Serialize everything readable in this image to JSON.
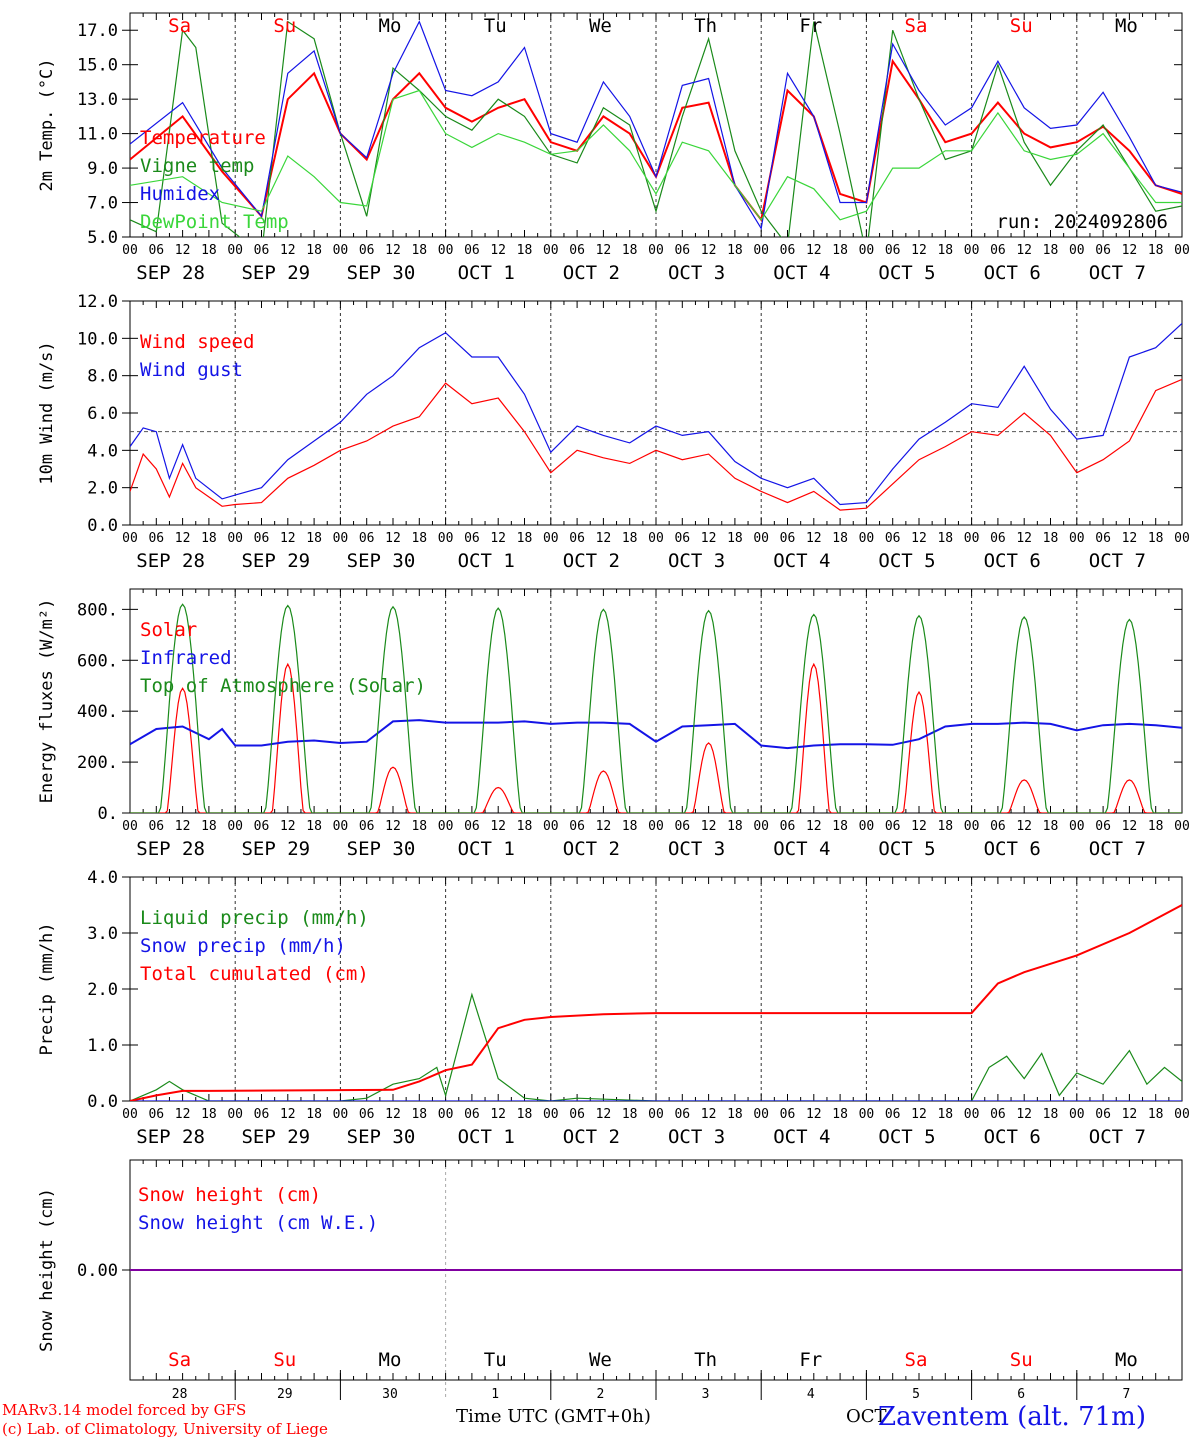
{
  "run_label": "run: 2024092806",
  "day_letters": [
    "Sa",
    "Su",
    "Mo",
    "Tu",
    "We",
    "Th",
    "Fr",
    "Sa",
    "Su",
    "Mo"
  ],
  "weekend_indices": [
    0,
    1,
    7,
    8
  ],
  "hour_labels": [
    "00",
    "06",
    "12",
    "18"
  ],
  "date_labels": [
    "SEP 28",
    "SEP 29",
    "SEP 30",
    "OCT 1",
    "OCT 2",
    "OCT 3",
    "OCT 4",
    "OCT 5",
    "OCT 6",
    "OCT 7"
  ],
  "day_numbers": [
    "28",
    "29",
    "30",
    "1",
    "2",
    "3",
    "4",
    "5",
    "6",
    "7"
  ],
  "footer": {
    "credit1": "MARv3.14 model forced by GFS",
    "credit2": "(c) Lab. of Climatology, University of Liege",
    "xaxis": "Time UTC (GMT+0h)",
    "month": "OCT",
    "station": "Zaventem (alt. 71m)"
  },
  "colors": {
    "red": "#ff0000",
    "green": "#1a8a1a",
    "blue": "#1414e6",
    "lightgreen": "#3ad63a",
    "purple": "#8000a0",
    "axis": "#000000"
  },
  "chart_data": [
    {
      "type": "line",
      "ylabel": "2m Temp. (°C)",
      "ylim": [
        5,
        18
      ],
      "yticks": [
        "5.0",
        "7.0",
        "9.0",
        "11.0",
        "13.0",
        "15.0",
        "17.0"
      ],
      "x_unit": "hours since 2024-09-28 00 UTC",
      "series": [
        {
          "name": "Temperature",
          "color": "#ff0000",
          "x": [
            0,
            12,
            21,
            30,
            36,
            42,
            48,
            54,
            60,
            66,
            72,
            78,
            84,
            90,
            96,
            102,
            108,
            114,
            120,
            126,
            132,
            138,
            144,
            150,
            156,
            162,
            168,
            174,
            180,
            186,
            192,
            198,
            204,
            210,
            216,
            222,
            228,
            234,
            240
          ],
          "values": [
            9.5,
            12.0,
            8.8,
            6.2,
            13.0,
            14.5,
            11.0,
            9.5,
            13.0,
            14.5,
            12.5,
            11.7,
            12.5,
            13.0,
            10.5,
            10.0,
            12.0,
            11.0,
            8.5,
            12.5,
            12.8,
            8.0,
            6.0,
            13.5,
            12.0,
            7.5,
            7.0,
            15.2,
            13.0,
            10.5,
            11.0,
            12.8,
            11.0,
            10.2,
            10.5,
            11.4,
            10.0,
            8.0,
            7.5
          ]
        },
        {
          "name": "Vigne temp",
          "color": "#1a8a1a",
          "x": [
            0,
            6,
            12,
            15,
            21,
            30,
            36,
            42,
            48,
            54,
            60,
            66,
            72,
            78,
            84,
            90,
            96,
            102,
            108,
            114,
            120,
            126,
            132,
            138,
            144,
            150,
            156,
            162,
            168,
            174,
            180,
            186,
            192,
            198,
            204,
            210,
            216,
            222,
            228,
            234,
            240
          ],
          "values": [
            6.0,
            5.3,
            17.0,
            16.0,
            5.8,
            4.0,
            17.5,
            16.5,
            11.0,
            6.2,
            14.8,
            13.5,
            12.0,
            11.2,
            13.0,
            12.0,
            9.8,
            9.3,
            12.5,
            11.5,
            6.5,
            12.0,
            16.5,
            10.0,
            6.5,
            4.5,
            17.5,
            11.0,
            4.0,
            17.0,
            13.0,
            9.5,
            10.0,
            15.0,
            10.5,
            8.0,
            10.0,
            11.5,
            9.0,
            6.5,
            6.8
          ]
        },
        {
          "name": "Humidex",
          "color": "#1414e6",
          "x": [
            0,
            12,
            21,
            30,
            36,
            42,
            48,
            54,
            60,
            66,
            72,
            78,
            84,
            90,
            96,
            102,
            108,
            114,
            120,
            126,
            132,
            138,
            144,
            150,
            156,
            162,
            168,
            174,
            180,
            186,
            192,
            198,
            204,
            210,
            216,
            222,
            228,
            234,
            240
          ],
          "values": [
            10.4,
            12.8,
            9.0,
            6.2,
            14.5,
            15.8,
            11.0,
            9.6,
            14.5,
            17.5,
            13.5,
            13.2,
            14.0,
            16.0,
            11.0,
            10.5,
            14.0,
            12.0,
            8.5,
            13.8,
            14.2,
            8.0,
            5.5,
            14.5,
            12.0,
            7.0,
            7.0,
            16.2,
            13.5,
            11.5,
            12.5,
            15.2,
            12.5,
            11.3,
            11.5,
            13.4,
            10.8,
            8.0,
            7.6
          ]
        },
        {
          "name": "DewPoint Temp",
          "color": "#3ad63a",
          "x": [
            0,
            12,
            21,
            30,
            36,
            42,
            48,
            54,
            60,
            66,
            72,
            78,
            84,
            90,
            96,
            102,
            108,
            114,
            120,
            126,
            132,
            138,
            144,
            150,
            156,
            162,
            168,
            174,
            180,
            186,
            192,
            198,
            204,
            210,
            216,
            222,
            228,
            234,
            240
          ],
          "values": [
            8.0,
            8.5,
            7.0,
            6.5,
            9.7,
            8.5,
            7.0,
            6.8,
            13.0,
            13.5,
            11.0,
            10.2,
            11.0,
            10.5,
            9.8,
            10.0,
            11.5,
            10.0,
            7.5,
            10.5,
            10.0,
            8.0,
            6.0,
            8.5,
            7.8,
            6.0,
            6.5,
            9.0,
            9.0,
            10.0,
            10.0,
            12.2,
            10.0,
            9.5,
            9.8,
            11.0,
            9.0,
            7.0,
            7.0
          ]
        }
      ]
    },
    {
      "type": "line",
      "ylabel": "10m Wind (m/s)",
      "ylim": [
        0,
        12
      ],
      "yticks": [
        "0.0",
        "2.0",
        "4.0",
        "6.0",
        "8.0",
        "10.0",
        "12.0"
      ],
      "reference_line": 5.0,
      "series": [
        {
          "name": "Wind speed",
          "color": "#ff0000",
          "x": [
            0,
            3,
            6,
            9,
            12,
            15,
            21,
            24,
            30,
            36,
            42,
            48,
            54,
            60,
            66,
            72,
            78,
            84,
            90,
            96,
            102,
            108,
            114,
            120,
            126,
            132,
            138,
            144,
            150,
            156,
            162,
            168,
            174,
            180,
            186,
            192,
            198,
            204,
            210,
            216,
            222,
            228,
            234,
            240
          ],
          "values": [
            1.8,
            3.8,
            3.0,
            1.5,
            3.3,
            2.0,
            1.0,
            1.1,
            1.2,
            2.5,
            3.2,
            4.0,
            4.5,
            5.3,
            5.8,
            7.6,
            6.5,
            6.8,
            5.0,
            2.8,
            4.0,
            3.6,
            3.3,
            4.0,
            3.5,
            3.8,
            2.5,
            1.8,
            1.2,
            1.8,
            0.8,
            0.9,
            2.2,
            3.5,
            4.2,
            5.0,
            4.8,
            6.0,
            4.8,
            2.8,
            3.5,
            4.5,
            7.2,
            7.8
          ]
        },
        {
          "name": "Wind gust",
          "color": "#1414e6",
          "x": [
            0,
            3,
            6,
            9,
            12,
            15,
            21,
            24,
            30,
            36,
            42,
            48,
            54,
            60,
            66,
            72,
            78,
            84,
            90,
            96,
            102,
            108,
            114,
            120,
            126,
            132,
            138,
            144,
            150,
            156,
            162,
            168,
            174,
            180,
            186,
            192,
            198,
            204,
            210,
            216,
            222,
            228,
            234,
            240
          ],
          "values": [
            4.2,
            5.2,
            5.0,
            2.5,
            4.3,
            2.5,
            1.4,
            1.6,
            2.0,
            3.5,
            4.5,
            5.5,
            7.0,
            8.0,
            9.5,
            10.3,
            9.0,
            9.0,
            7.0,
            3.9,
            5.3,
            4.8,
            4.4,
            5.3,
            4.8,
            5.0,
            3.4,
            2.5,
            2.0,
            2.5,
            1.1,
            1.2,
            3.0,
            4.6,
            5.5,
            6.5,
            6.3,
            8.5,
            6.2,
            4.6,
            4.8,
            9.0,
            9.5,
            10.8
          ]
        }
      ]
    },
    {
      "type": "line",
      "ylabel": "Energy fluxes (W/m²)",
      "ylim": [
        0,
        880
      ],
      "yticks": [
        "0.",
        "200.",
        "400.",
        "600.",
        "800."
      ],
      "series": [
        {
          "name": "Solar",
          "color": "#ff0000",
          "peaks": [
            490,
            585,
            180,
            100,
            165,
            275,
            585,
            475,
            130,
            130
          ]
        },
        {
          "name": "Infrared",
          "color": "#1414e6",
          "x": [
            0,
            6,
            12,
            18,
            21,
            24,
            30,
            36,
            42,
            48,
            54,
            60,
            66,
            72,
            78,
            84,
            90,
            96,
            102,
            108,
            114,
            120,
            126,
            132,
            138,
            144,
            150,
            156,
            162,
            168,
            174,
            180,
            186,
            192,
            198,
            204,
            210,
            216,
            222,
            228,
            234,
            240
          ],
          "values": [
            270,
            330,
            340,
            290,
            330,
            265,
            265,
            280,
            285,
            275,
            280,
            360,
            365,
            355,
            355,
            355,
            360,
            350,
            355,
            355,
            350,
            280,
            340,
            345,
            350,
            265,
            255,
            265,
            270,
            270,
            268,
            290,
            340,
            350,
            350,
            355,
            350,
            325,
            345,
            350,
            345,
            335
          ]
        },
        {
          "name": "Top of Atmosphere (Solar)",
          "color": "#1a8a1a",
          "peaks": [
            820,
            815,
            810,
            805,
            800,
            795,
            780,
            775,
            770,
            760
          ]
        }
      ]
    },
    {
      "type": "line",
      "ylabel": "Precip (mm/h)",
      "ylim": [
        0,
        4
      ],
      "yticks": [
        "0.0",
        "1.0",
        "2.0",
        "3.0",
        "4.0"
      ],
      "series": [
        {
          "name": "Liquid precip (mm/h)",
          "color": "#1a8a1a",
          "x": [
            0,
            6,
            9,
            12,
            15,
            18,
            48,
            54,
            60,
            66,
            70,
            72,
            78,
            84,
            90,
            96,
            102,
            120,
            192,
            196,
            200,
            204,
            208,
            212,
            216,
            222,
            228,
            232,
            236,
            240
          ],
          "values": [
            0,
            0.2,
            0.35,
            0.2,
            0.1,
            0,
            0,
            0.05,
            0.3,
            0.4,
            0.6,
            0.1,
            1.9,
            0.4,
            0.05,
            0,
            0.05,
            0,
            0,
            0.6,
            0.8,
            0.4,
            0.85,
            0.1,
            0.5,
            0.3,
            0.9,
            0.3,
            0.6,
            0.35
          ]
        },
        {
          "name": "Snow precip (mm/h)",
          "color": "#1414e6",
          "x": [
            0,
            240
          ],
          "values": [
            0,
            0
          ]
        },
        {
          "name": "Total cumulated (cm)",
          "color": "#ff0000",
          "x": [
            0,
            6,
            12,
            18,
            60,
            66,
            72,
            78,
            84,
            90,
            96,
            108,
            120,
            144,
            168,
            192,
            198,
            204,
            216,
            228,
            240
          ],
          "values": [
            0,
            0.1,
            0.18,
            0.18,
            0.2,
            0.35,
            0.55,
            0.65,
            1.3,
            1.45,
            1.5,
            1.55,
            1.57,
            1.57,
            1.57,
            1.57,
            2.1,
            2.3,
            2.6,
            3.0,
            3.5
          ]
        }
      ]
    },
    {
      "type": "line",
      "ylabel": "Snow height (cm)",
      "ylim": [
        -1,
        1
      ],
      "yticks": [
        "0.00"
      ],
      "series": [
        {
          "name": "Snow height (cm)",
          "color": "#ff0000",
          "x": [
            0,
            240
          ],
          "values": [
            0,
            0
          ]
        },
        {
          "name": "Snow height (cm W.E.)",
          "color": "#1414e6",
          "x": [
            0,
            240
          ],
          "values": [
            0,
            0
          ]
        }
      ]
    }
  ]
}
